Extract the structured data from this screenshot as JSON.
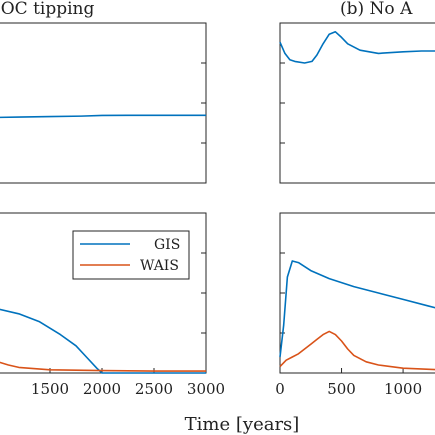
{
  "figure": {
    "xlabel": "Time [years]"
  },
  "chart_data": [
    {
      "type": "line",
      "panel": "top-left",
      "title": "IOC tipping",
      "xlim": [
        1000,
        3000
      ],
      "ylim": [
        0,
        1
      ],
      "series": [
        {
          "name": "",
          "color": "#0072BD",
          "x": [
            1000,
            1200,
            1500,
            1800,
            2000,
            2300,
            2600,
            3000
          ],
          "y": [
            0.41,
            0.412,
            0.415,
            0.418,
            0.422,
            0.423,
            0.423,
            0.423
          ]
        }
      ]
    },
    {
      "type": "line",
      "panel": "top-right",
      "title": "(b) No A",
      "xlim": [
        0,
        1300
      ],
      "ylim": [
        0,
        1
      ],
      "series": [
        {
          "name": "",
          "color": "#0072BD",
          "x": [
            0,
            40,
            80,
            120,
            200,
            260,
            300,
            350,
            400,
            450,
            500,
            550,
            650,
            800,
            1000,
            1150,
            1300
          ],
          "y": [
            0.88,
            0.81,
            0.77,
            0.76,
            0.75,
            0.76,
            0.8,
            0.87,
            0.93,
            0.945,
            0.91,
            0.87,
            0.83,
            0.81,
            0.82,
            0.825,
            0.825
          ]
        }
      ]
    },
    {
      "type": "line",
      "panel": "bottom-left",
      "xlim": [
        1000,
        3000
      ],
      "ylim": [
        0,
        1
      ],
      "xticks": [
        1500,
        2000,
        2500,
        3000
      ],
      "legend": {
        "placement": "top-right",
        "entries": [
          "GIS",
          "WAIS"
        ]
      },
      "series": [
        {
          "name": "GIS",
          "color": "#0072BD",
          "x": [
            1000,
            1200,
            1400,
            1600,
            1750,
            1850,
            1950,
            2000,
            2050,
            2200,
            2500,
            3000
          ],
          "y": [
            0.4,
            0.37,
            0.32,
            0.24,
            0.17,
            0.1,
            0.03,
            0.0,
            0.0,
            0.0,
            0.0,
            0.0
          ]
        },
        {
          "name": "WAIS",
          "color": "#D95319",
          "x": [
            1000,
            1100,
            1200,
            1500,
            2000,
            2500,
            3000
          ],
          "y": [
            0.07,
            0.05,
            0.035,
            0.02,
            0.015,
            0.012,
            0.012
          ]
        }
      ]
    },
    {
      "type": "line",
      "panel": "bottom-right",
      "xlim": [
        0,
        1300
      ],
      "ylim": [
        0,
        1
      ],
      "xticks": [
        0,
        500,
        1000
      ],
      "series": [
        {
          "name": "GIS",
          "color": "#0072BD",
          "x": [
            0,
            30,
            60,
            100,
            150,
            250,
            400,
            600,
            800,
            1000,
            1200,
            1300
          ],
          "y": [
            0.1,
            0.3,
            0.6,
            0.7,
            0.69,
            0.64,
            0.59,
            0.54,
            0.5,
            0.46,
            0.42,
            0.4
          ]
        },
        {
          "name": "WAIS",
          "color": "#D95319",
          "x": [
            0,
            50,
            100,
            150,
            200,
            250,
            300,
            350,
            400,
            450,
            500,
            550,
            600,
            700,
            800,
            1000,
            1300
          ],
          "y": [
            0.04,
            0.08,
            0.1,
            0.12,
            0.15,
            0.18,
            0.21,
            0.24,
            0.26,
            0.24,
            0.2,
            0.15,
            0.11,
            0.07,
            0.05,
            0.03,
            0.02
          ]
        }
      ]
    }
  ]
}
